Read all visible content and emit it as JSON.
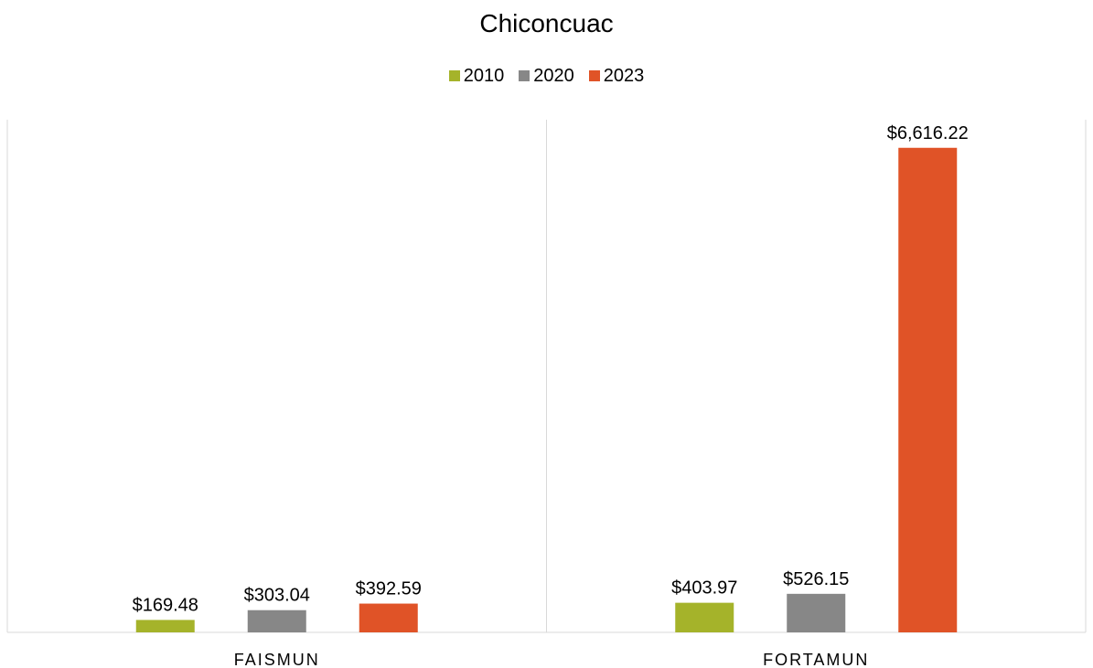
{
  "chart_data": {
    "type": "bar",
    "title": "Chiconcuac",
    "categories": [
      "FAISMUN",
      "FORTAMUN"
    ],
    "series": [
      {
        "name": "2010",
        "color": "#A5B32A",
        "values": [
          169.48,
          403.97
        ],
        "labels": [
          "$169.48",
          "$403.97"
        ]
      },
      {
        "name": "2020",
        "color": "#878787",
        "values": [
          303.04,
          526.15
        ],
        "labels": [
          "$303.04",
          "$526.15"
        ]
      },
      {
        "name": "2023",
        "color": "#E05327",
        "values": [
          392.59,
          6616.22
        ],
        "labels": [
          "$392.59",
          "$6,616.22"
        ]
      }
    ],
    "ylim": [
      0,
      7000
    ],
    "legend_position": "top",
    "grid": false
  }
}
